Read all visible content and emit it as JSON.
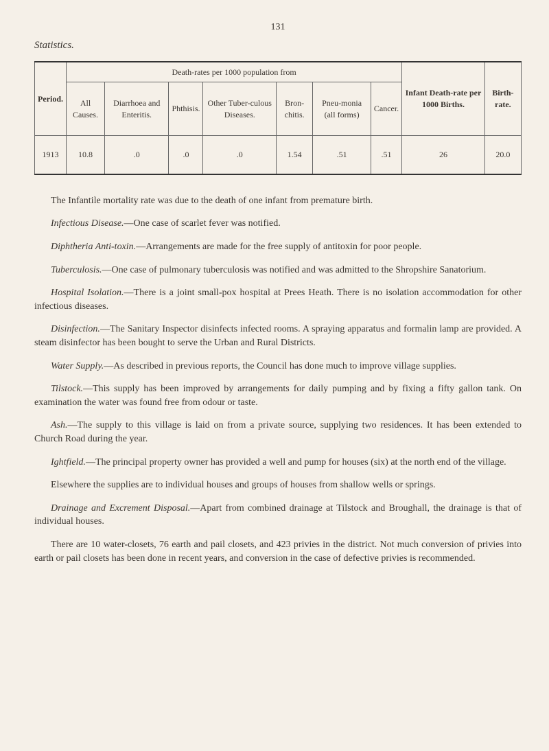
{
  "page_number": "131",
  "section_header": "Statistics.",
  "table": {
    "super_header": "Death-rates per 1000 population from",
    "columns": [
      "Period.",
      "All Causes.",
      "Diarrhoea and Enteritis.",
      "Phthisis.",
      "Other Tuber-culous Diseases.",
      "Bron-chitis.",
      "Pneu-monia (all forms)",
      "Cancer.",
      "Infant Death-rate per 1000 Births.",
      "Birth-rate."
    ],
    "rows": [
      [
        "1913",
        "10.8",
        ".0",
        ".0",
        ".0",
        "1.54",
        ".51",
        ".51",
        "26",
        "20.0"
      ]
    ]
  },
  "paragraphs": {
    "p1": "The Infantile mortality rate was due to the death of one infant from premature birth.",
    "p2_lead": "Infectious Disease.",
    "p2_body": "—One case of scarlet fever was notified.",
    "p3_lead": "Diphtheria Anti-toxin.",
    "p3_body": "—Arrangements are made for the free supply of antitoxin for poor people.",
    "p4_lead": "Tuberculosis.",
    "p4_body": "—One case of pulmonary tuberculosis was notified and was admitted to the Shropshire Sanatorium.",
    "p5_lead": "Hospital Isolation.",
    "p5_body": "—There is a joint small-pox hospital at Prees Heath. There is no isolation accommodation for other infectious diseases.",
    "p6_lead": "Disinfection.",
    "p6_body": "—The Sanitary Inspector disinfects infected rooms. A spraying apparatus and formalin lamp are provided. A steam disinfector has been bought to serve the Urban and Rural Districts.",
    "p7_lead": "Water Supply.",
    "p7_body": "—As described in previous reports, the Council has done much to improve village supplies.",
    "p8_lead": "Tilstock.",
    "p8_body": "—This supply has been improved by arrangements for daily pumping and by fixing a fifty gallon tank. On examination the water was found free from odour or taste.",
    "p9_lead": "Ash.",
    "p9_body": "—The supply to this village is laid on from a private source, supplying two residences. It has been extended to Church Road during the year.",
    "p10_lead": "Ightfield.",
    "p10_body": "—The principal property owner has provided a well and pump for houses (six) at the north end of the village.",
    "p10_extra": "Elsewhere the supplies are to individual houses and groups of houses from shallow wells or springs.",
    "p11_lead": "Drainage and Excrement Disposal.",
    "p11_body": "—Apart from combined drainage at Tilstock and Broughall, the drainage is that of individual houses.",
    "p11_extra": "There are 10 water-closets, 76 earth and pail closets, and 423 privies in the district. Not much conversion of privies into earth or pail closets has been done in recent years, and conversion in the case of defective privies is recommended."
  }
}
